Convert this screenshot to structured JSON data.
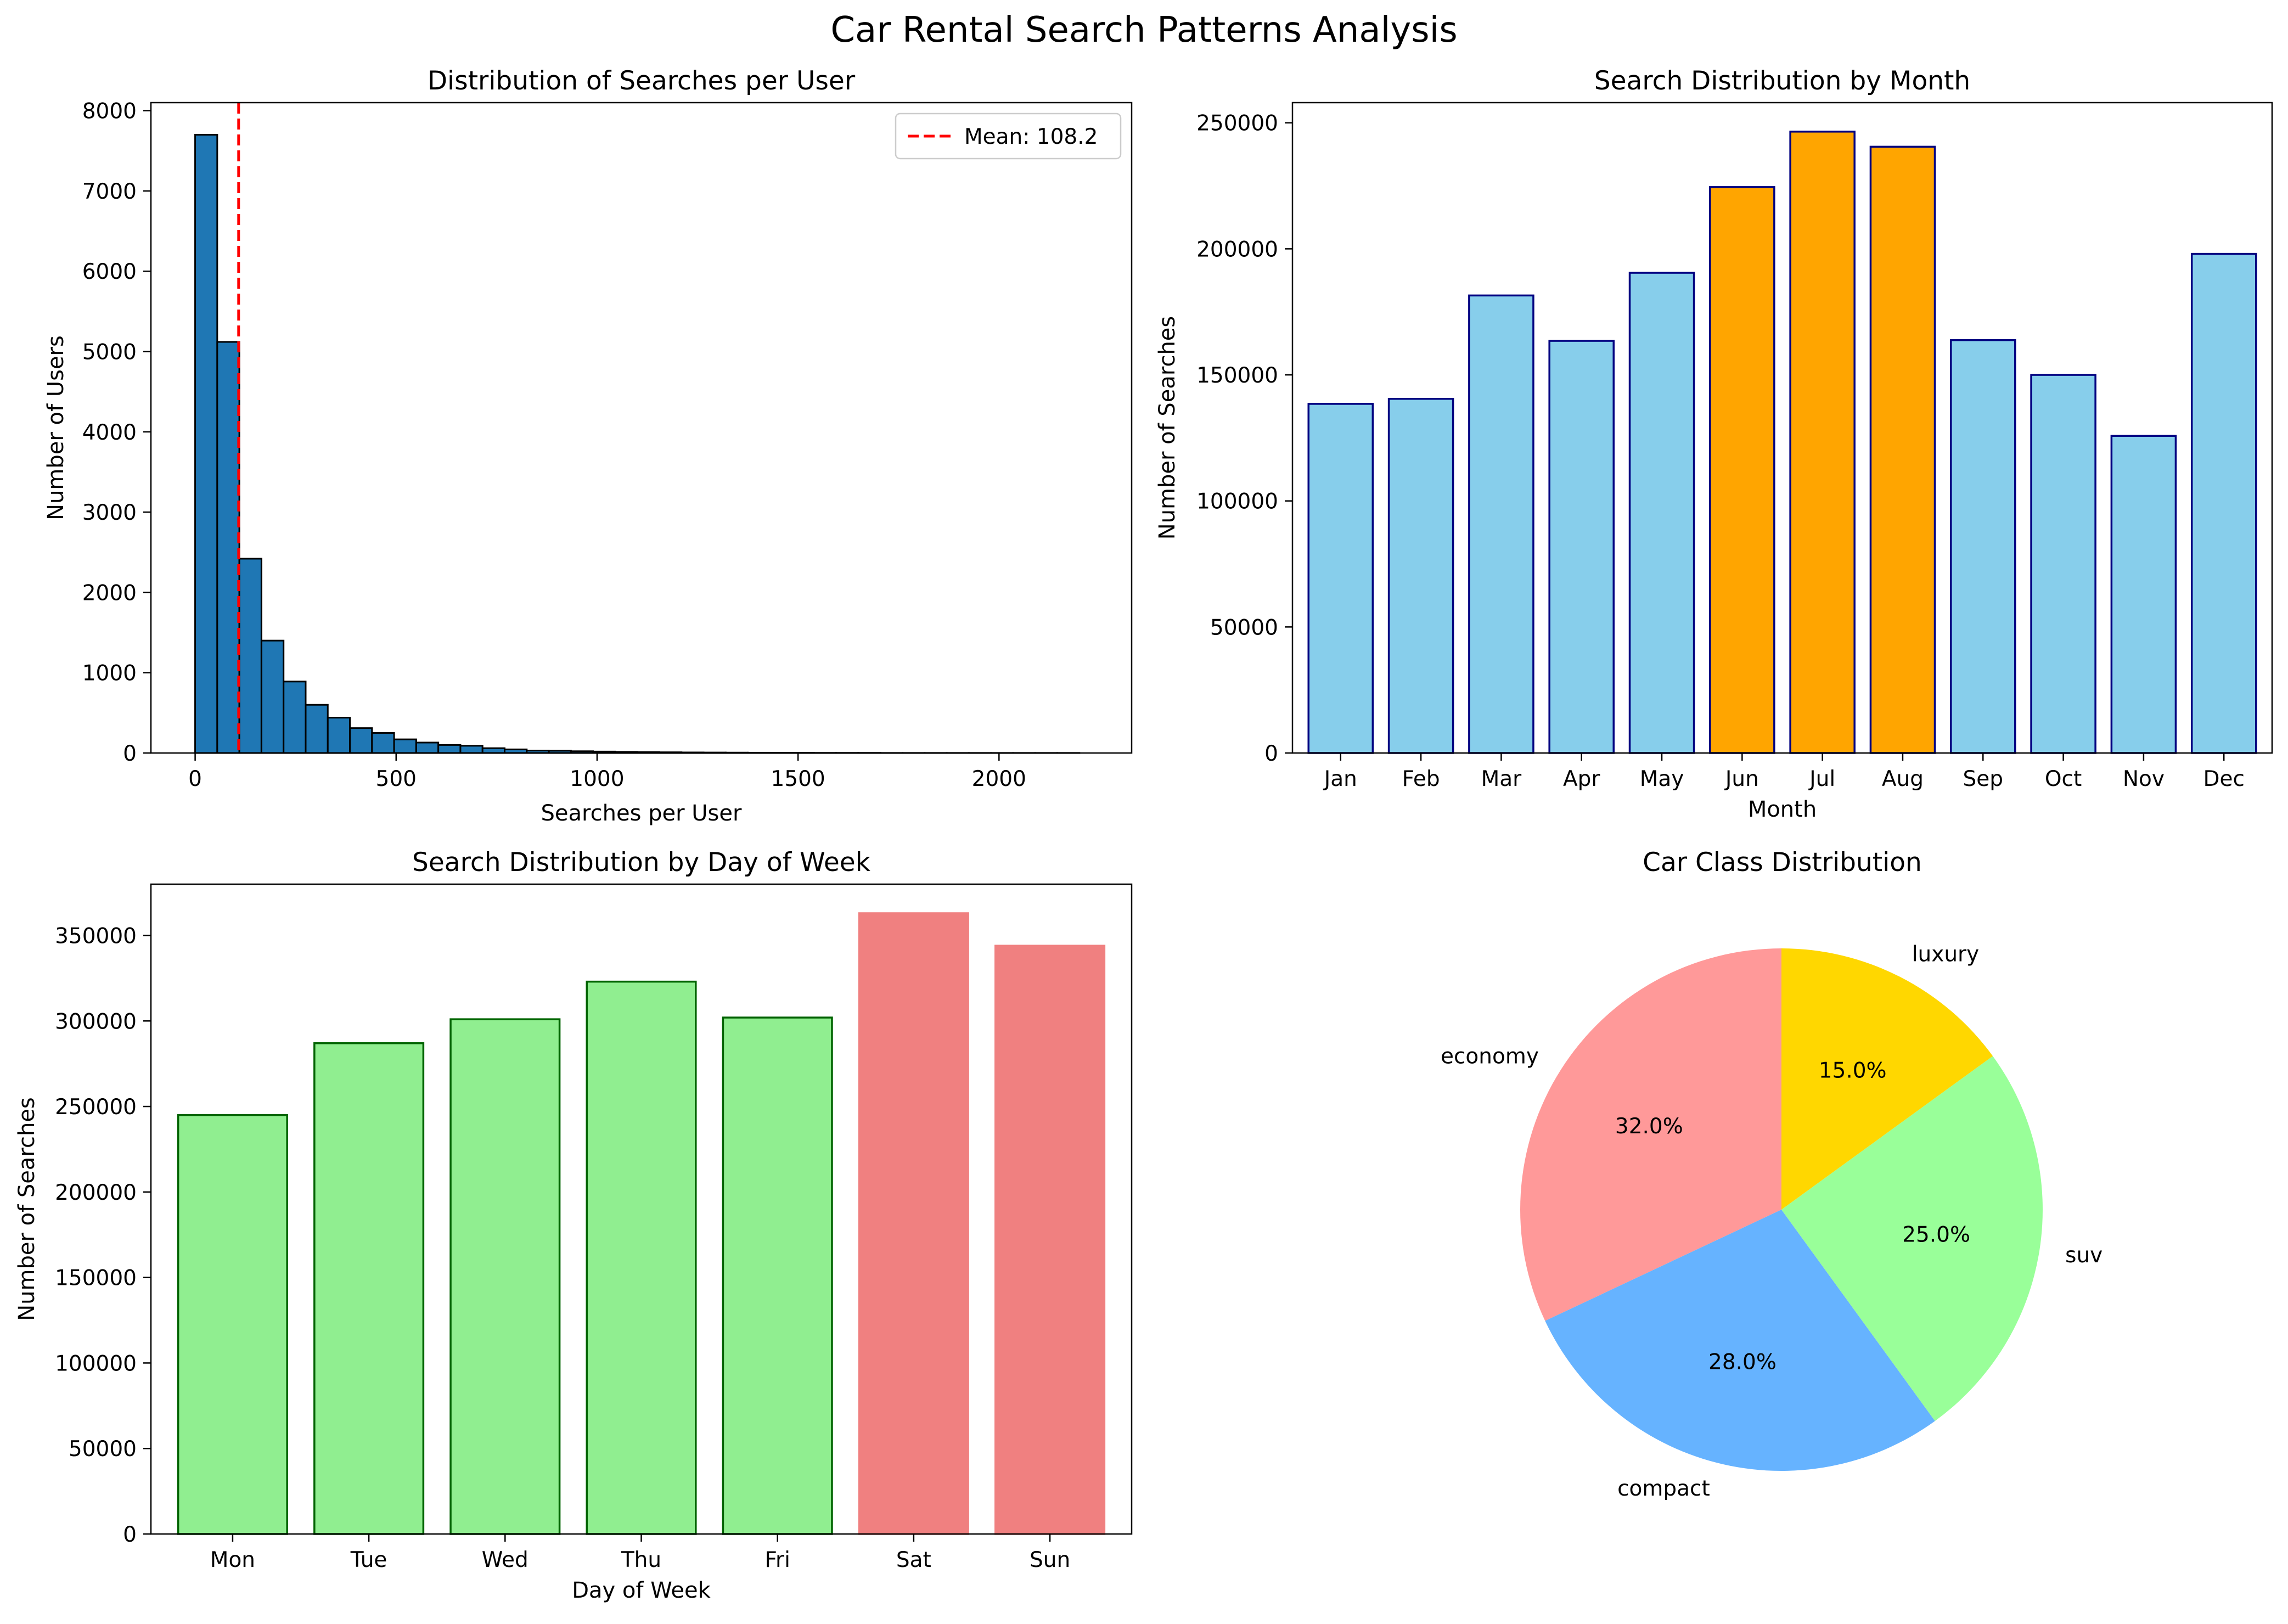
{
  "figure": {
    "title": "Car Rental Search Patterns Analysis"
  },
  "chart_data": [
    {
      "type": "bar",
      "subtype": "histogram",
      "title": "Distribution of Searches per User",
      "xlabel": "Searches per User",
      "ylabel": "Number of Users",
      "xlim": [
        -110,
        2330
      ],
      "ylim": [
        0,
        8100
      ],
      "xticks": [
        0,
        500,
        1000,
        1500,
        2000
      ],
      "yticks": [
        0,
        1000,
        2000,
        3000,
        4000,
        5000,
        6000,
        7000,
        8000
      ],
      "bin_start": 0,
      "bin_width": 55,
      "counts": [
        7700,
        5120,
        2420,
        1400,
        890,
        600,
        440,
        310,
        250,
        170,
        130,
        100,
        90,
        60,
        45,
        30,
        28,
        22,
        18,
        14,
        11,
        9,
        7,
        6,
        5,
        4,
        3,
        3,
        2,
        2,
        2,
        1,
        1,
        1,
        1,
        1,
        1,
        1,
        1,
        1
      ],
      "bar_color": "#1f77b4",
      "edge_color": "#000000",
      "mean_line": {
        "value": 108.2,
        "color": "#ff0000"
      },
      "legend": {
        "entries": [
          "Mean: 108.2"
        ],
        "position": "top-right"
      }
    },
    {
      "type": "bar",
      "title": "Search Distribution by Month",
      "xlabel": "Month",
      "ylabel": "Number of Searches",
      "ylim": [
        0,
        258000
      ],
      "yticks": [
        0,
        50000,
        100000,
        150000,
        200000,
        250000
      ],
      "categories": [
        "Jan",
        "Feb",
        "Mar",
        "Apr",
        "May",
        "Jun",
        "Jul",
        "Aug",
        "Sep",
        "Oct",
        "Nov",
        "Dec"
      ],
      "values": [
        138500,
        140500,
        181500,
        163500,
        190500,
        224500,
        246500,
        240500,
        163800,
        150000,
        125800,
        198000
      ],
      "colors": [
        "#87ceeb",
        "#87ceeb",
        "#87ceeb",
        "#87ceeb",
        "#87ceeb",
        "#ffa500",
        "#ffa500",
        "#ffa500",
        "#87ceeb",
        "#87ceeb",
        "#87ceeb",
        "#87ceeb"
      ],
      "edge_color": "#000080"
    },
    {
      "type": "bar",
      "title": "Search Distribution by Day of Week",
      "xlabel": "Day of Week",
      "ylabel": "Number of Searches",
      "ylim": [
        0,
        380000
      ],
      "yticks": [
        0,
        50000,
        100000,
        150000,
        200000,
        250000,
        300000,
        350000
      ],
      "categories": [
        "Mon",
        "Tue",
        "Wed",
        "Thu",
        "Fri",
        "Sat",
        "Sun"
      ],
      "values": [
        245000,
        287000,
        301000,
        323000,
        302000,
        363000,
        344000
      ],
      "colors": [
        "#90ee90",
        "#90ee90",
        "#90ee90",
        "#90ee90",
        "#90ee90",
        "#f08080",
        "#f08080"
      ],
      "edge_colors": [
        "#006400",
        "#006400",
        "#006400",
        "#006400",
        "#006400",
        "#f08080",
        "#f08080"
      ]
    },
    {
      "type": "pie",
      "title": "Car Class Distribution",
      "labels": [
        "economy",
        "compact",
        "suv",
        "luxury"
      ],
      "values": [
        32.0,
        28.0,
        25.0,
        15.0
      ],
      "pct_labels": [
        "32.0%",
        "28.0%",
        "25.0%",
        "15.0%"
      ],
      "colors": [
        "#ff9999",
        "#66b3ff",
        "#99ff99",
        "#ffd700"
      ],
      "start_angle_deg": 90,
      "direction": "counterclockwise"
    }
  ]
}
